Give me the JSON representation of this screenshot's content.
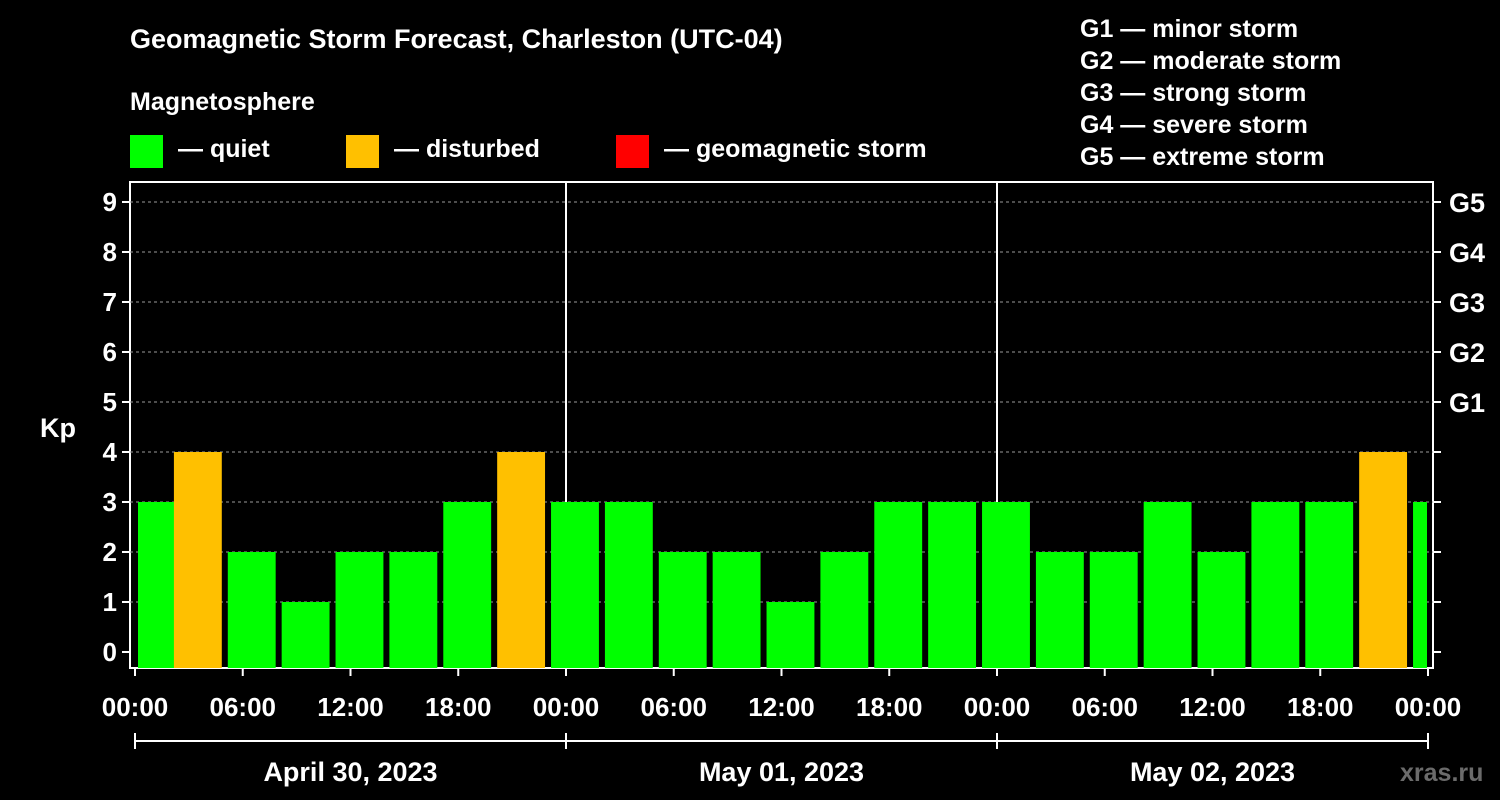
{
  "title": "Geomagnetic Storm Forecast, Charleston (UTC-04)",
  "magnetosphere_label": "Magnetosphere",
  "legend": [
    {
      "label": "— quiet",
      "color": "#00ff00"
    },
    {
      "label": "— disturbed",
      "color": "#ffc000"
    },
    {
      "label": "— geomagnetic storm",
      "color": "#ff0000"
    }
  ],
  "storm_scale": [
    "G1 — minor storm",
    "G2 — moderate storm",
    "G3 — strong storm",
    "G4 — severe storm",
    "G5 — extreme storm"
  ],
  "watermark": "xras.ru",
  "chart_data": {
    "type": "bar",
    "ylabel": "Kp",
    "ylim": [
      0,
      9
    ],
    "yticks": [
      "0",
      "1",
      "2",
      "3",
      "4",
      "5",
      "6",
      "7",
      "8",
      "9"
    ],
    "right_ticks": [
      {
        "kp": 5,
        "label": "G1"
      },
      {
        "kp": 6,
        "label": "G2"
      },
      {
        "kp": 7,
        "label": "G3"
      },
      {
        "kp": 8,
        "label": "G4"
      },
      {
        "kp": 9,
        "label": "G5"
      }
    ],
    "xticks": [
      "00:00",
      "06:00",
      "12:00",
      "18:00",
      "00:00",
      "06:00",
      "12:00",
      "18:00",
      "00:00",
      "06:00",
      "12:00",
      "18:00",
      "00:00"
    ],
    "days": [
      "April 30, 2023",
      "May 01, 2023",
      "May 02, 2023"
    ],
    "grid": "horizontal dashed",
    "bars": [
      {
        "start_hour": 0,
        "kp": 3,
        "status": "quiet"
      },
      {
        "start_hour": 2,
        "kp": 4,
        "status": "disturbed"
      },
      {
        "start_hour": 5,
        "kp": 2,
        "status": "quiet"
      },
      {
        "start_hour": 8,
        "kp": 1,
        "status": "quiet"
      },
      {
        "start_hour": 11,
        "kp": 2,
        "status": "quiet"
      },
      {
        "start_hour": 14,
        "kp": 2,
        "status": "quiet"
      },
      {
        "start_hour": 17,
        "kp": 3,
        "status": "quiet"
      },
      {
        "start_hour": 20,
        "kp": 4,
        "status": "disturbed"
      },
      {
        "start_hour": 23,
        "kp": 3,
        "status": "quiet"
      },
      {
        "start_hour": 26,
        "kp": 3,
        "status": "quiet"
      },
      {
        "start_hour": 29,
        "kp": 2,
        "status": "quiet"
      },
      {
        "start_hour": 32,
        "kp": 2,
        "status": "quiet"
      },
      {
        "start_hour": 35,
        "kp": 1,
        "status": "quiet"
      },
      {
        "start_hour": 38,
        "kp": 2,
        "status": "quiet"
      },
      {
        "start_hour": 41,
        "kp": 3,
        "status": "quiet"
      },
      {
        "start_hour": 44,
        "kp": 3,
        "status": "quiet"
      },
      {
        "start_hour": 47,
        "kp": 3,
        "status": "quiet"
      },
      {
        "start_hour": 50,
        "kp": 2,
        "status": "quiet"
      },
      {
        "start_hour": 53,
        "kp": 2,
        "status": "quiet"
      },
      {
        "start_hour": 56,
        "kp": 3,
        "status": "quiet"
      },
      {
        "start_hour": 59,
        "kp": 2,
        "status": "quiet"
      },
      {
        "start_hour": 62,
        "kp": 3,
        "status": "quiet"
      },
      {
        "start_hour": 65,
        "kp": 3,
        "status": "quiet"
      },
      {
        "start_hour": 68,
        "kp": 4,
        "status": "disturbed"
      },
      {
        "start_hour": 71,
        "kp": 3,
        "status": "quiet"
      }
    ]
  }
}
